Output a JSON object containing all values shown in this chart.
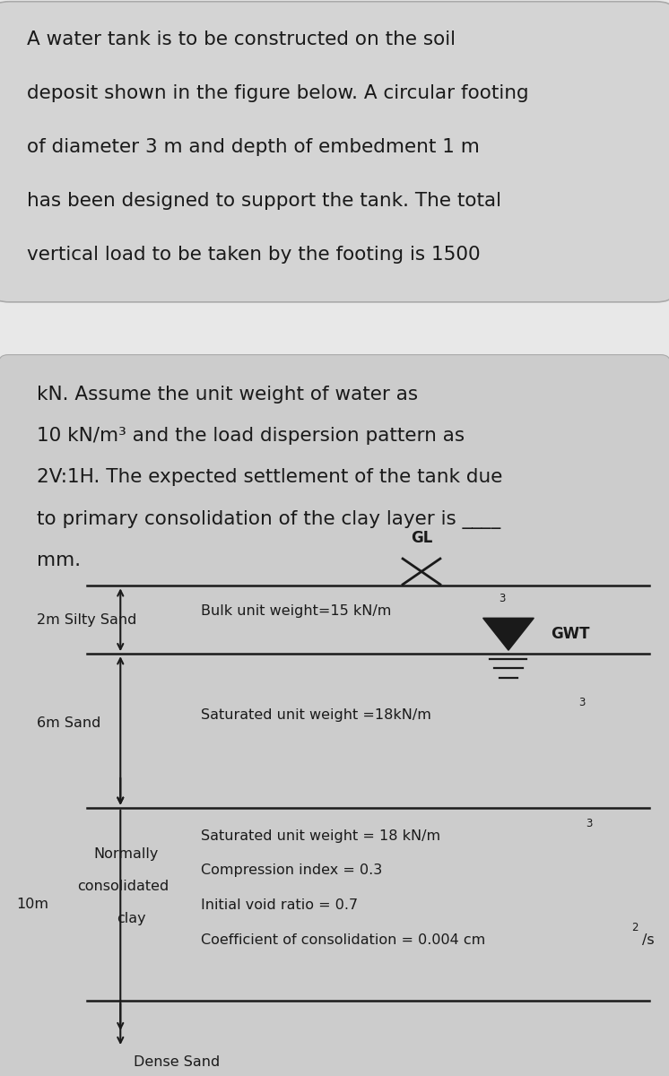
{
  "bg_top": "#d2d2d2",
  "bg_bot": "#c8c8c8",
  "bg_white": "#f0f0f0",
  "text_color": "#1a1a1a",
  "p1_lines": [
    "A water tank is to be constructed on the soil",
    "deposit shown in the figure below. A circular footing",
    "of diameter 3 m and depth of embedment 1 m",
    "has been designed to support the tank. The total",
    "vertical load to be taken by the footing is 1500"
  ],
  "p2_lines": [
    "kN. Assume the unit weight of water as",
    "10 kN/m³ and the load dispersion pattern as",
    "2V:1H. The expected settlement of the tank due",
    "to primary consolidation of the clay layer is ____",
    "mm."
  ],
  "layer1_label": "2m Silty Sand",
  "layer1_prop": "Bulk unit weight=15 kN/m",
  "layer2_label": "6m Sand",
  "layer2_prop": "Saturated unit weight =18kN/m",
  "layer3_depth": "10m",
  "layer3_lbl1": "Normally",
  "layer3_lbl2": "consolidated",
  "layer3_lbl3": "clay",
  "layer3_p1": "Saturated unit weight = 18 kN/m",
  "layer3_p2": "Compression index = 0.3",
  "layer3_p3": "Initial void ratio = 0.7",
  "layer3_p4": "Coefficient of consolidation = 0.004 cm",
  "layer4_label": "Dense Sand",
  "gl_label": "GL",
  "gwt_label": "GWT"
}
